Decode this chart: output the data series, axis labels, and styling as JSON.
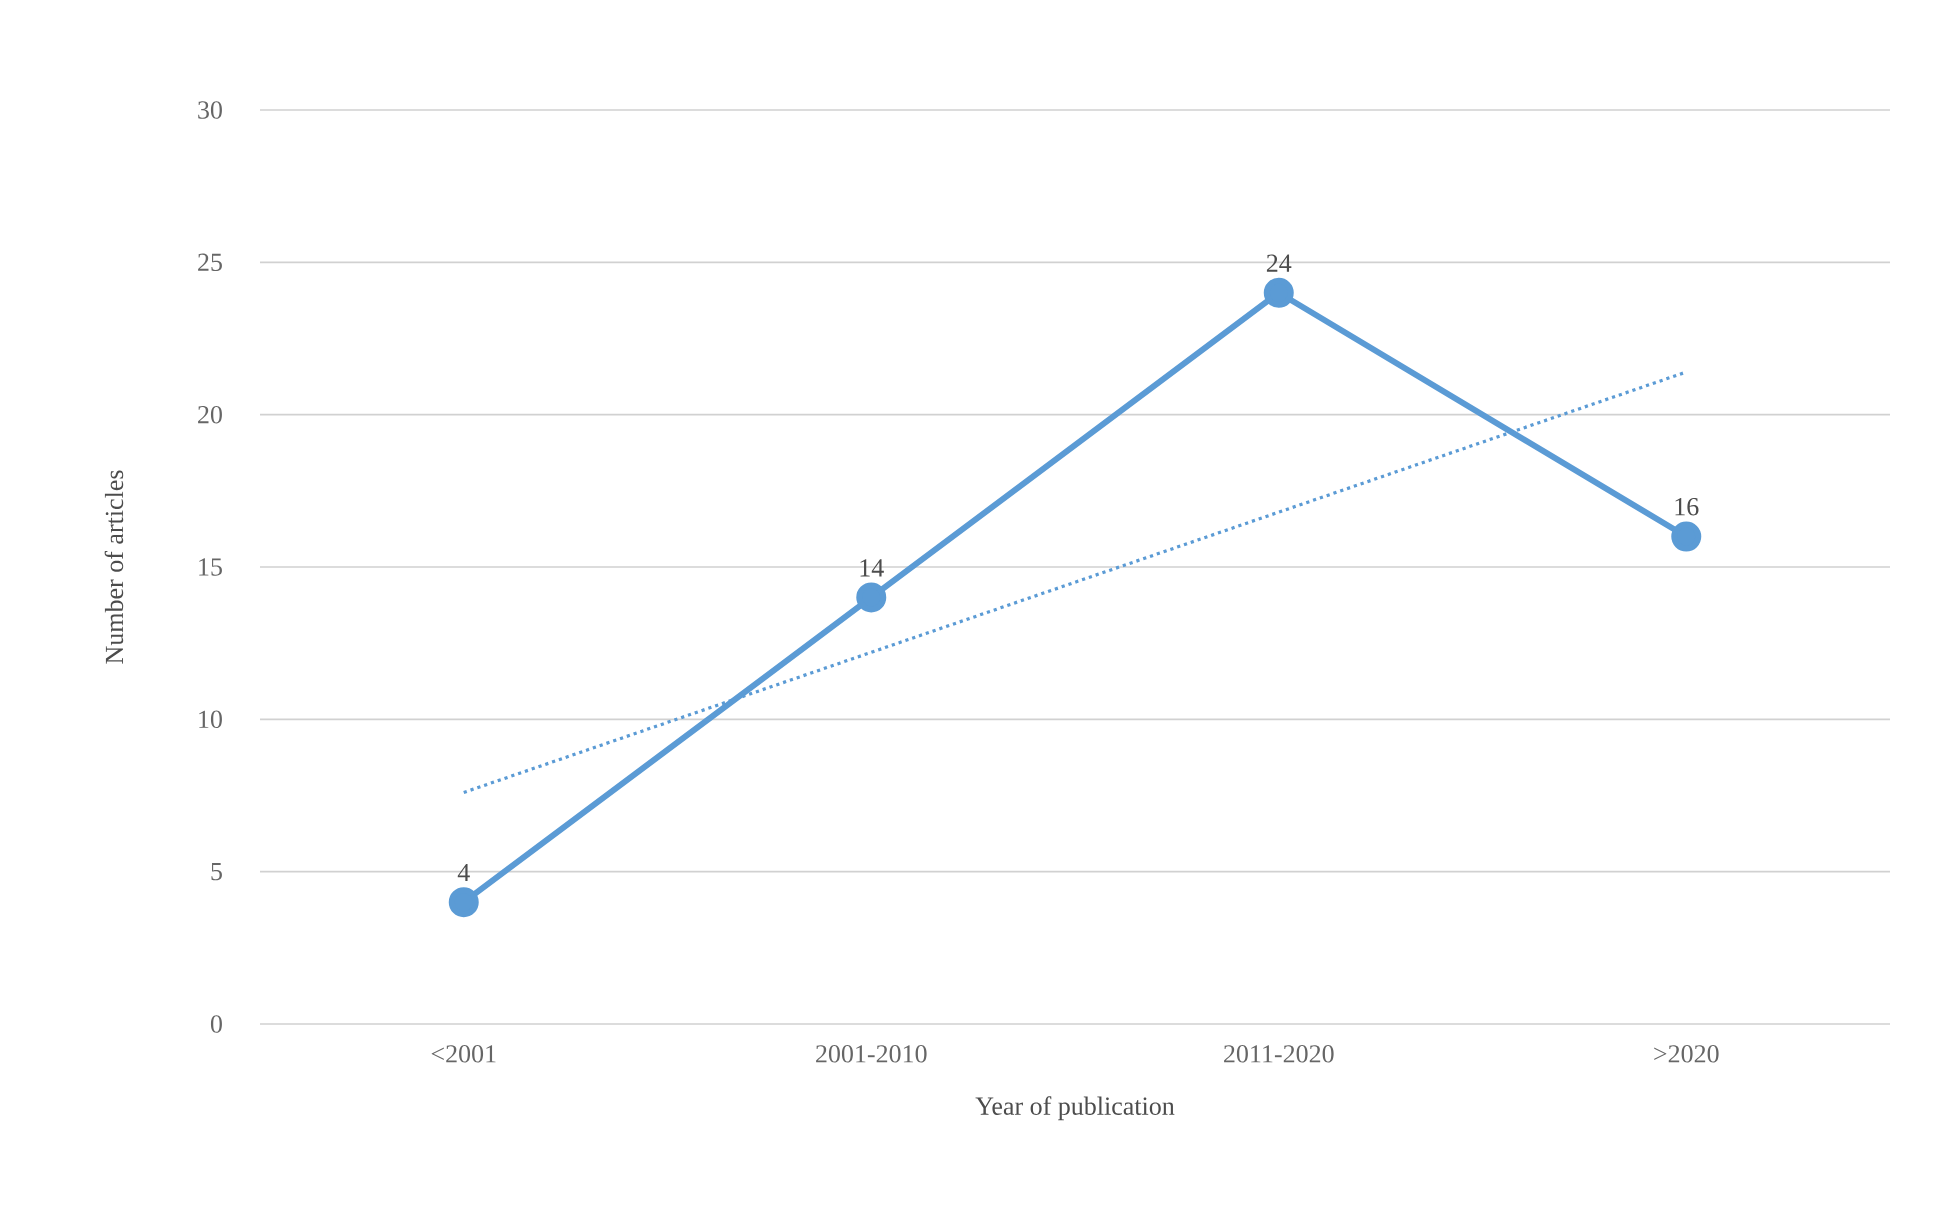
{
  "chart_data": {
    "type": "line",
    "xlabel": "Year of publication",
    "ylabel": "Number of articles",
    "categories": [
      "<2001",
      "2001-2010",
      "2011-2020",
      ">2020"
    ],
    "series": [
      {
        "color": "#5b9bd5",
        "values": [
          4,
          14,
          24,
          16
        ],
        "value_labels": [
          "4",
          "14",
          "24",
          "16"
        ],
        "marker": "circle",
        "line_style": "solid"
      },
      {
        "type": "line",
        "color": "#5b9bd5",
        "values": [
          7.6,
          12.2,
          16.8,
          21.4
        ],
        "marker": "none",
        "line_style": "dotted"
      }
    ],
    "ylim": [
      0,
      30
    ],
    "yticks": [
      0,
      5,
      10,
      15,
      20,
      25,
      30
    ],
    "grid": "y"
  }
}
